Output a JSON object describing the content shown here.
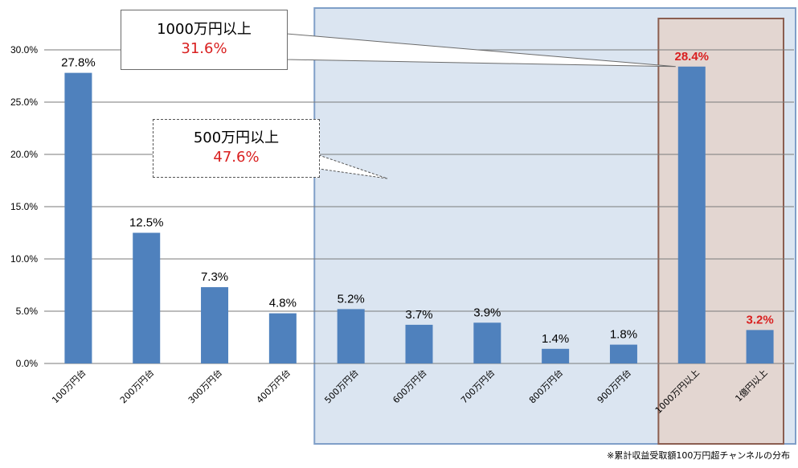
{
  "chart_data": {
    "type": "bar",
    "categories": [
      "100万円台",
      "200万円台",
      "300万円台",
      "400万円台",
      "500万円台",
      "600万円台",
      "700万円台",
      "800万円台",
      "900万円台",
      "1000万円以上",
      "1億円以上"
    ],
    "values": [
      27.8,
      12.5,
      7.3,
      4.8,
      5.2,
      3.7,
      3.9,
      1.4,
      1.8,
      28.4,
      3.2
    ],
    "data_labels": [
      "27.8%",
      "12.5%",
      "7.3%",
      "4.8%",
      "5.2%",
      "3.7%",
      "3.9%",
      "1.4%",
      "1.8%",
      "28.4%",
      "3.2%"
    ],
    "highlight_label_indices": [
      9,
      10
    ],
    "ylim": [
      0,
      30
    ],
    "y_ticks": [
      "0.0%",
      "5.0%",
      "10.0%",
      "15.0%",
      "20.0%",
      "25.0%",
      "30.0%"
    ],
    "grid": true,
    "bar_color": "#4f81bd",
    "highlight_text_color": "#d92020",
    "highlight_regions": [
      {
        "from_index": 4,
        "to_index": 10,
        "color": "#dbe5f1"
      },
      {
        "from_index": 9,
        "to_index": 10,
        "color": "#e3d6d1"
      }
    ],
    "annotations": [
      {
        "title": "1000万円以上",
        "value": "31.6%"
      },
      {
        "title": "500万円以上",
        "value": "47.6%"
      }
    ]
  },
  "footnote": "※累計収益受取額100万円超チャンネルの分布"
}
